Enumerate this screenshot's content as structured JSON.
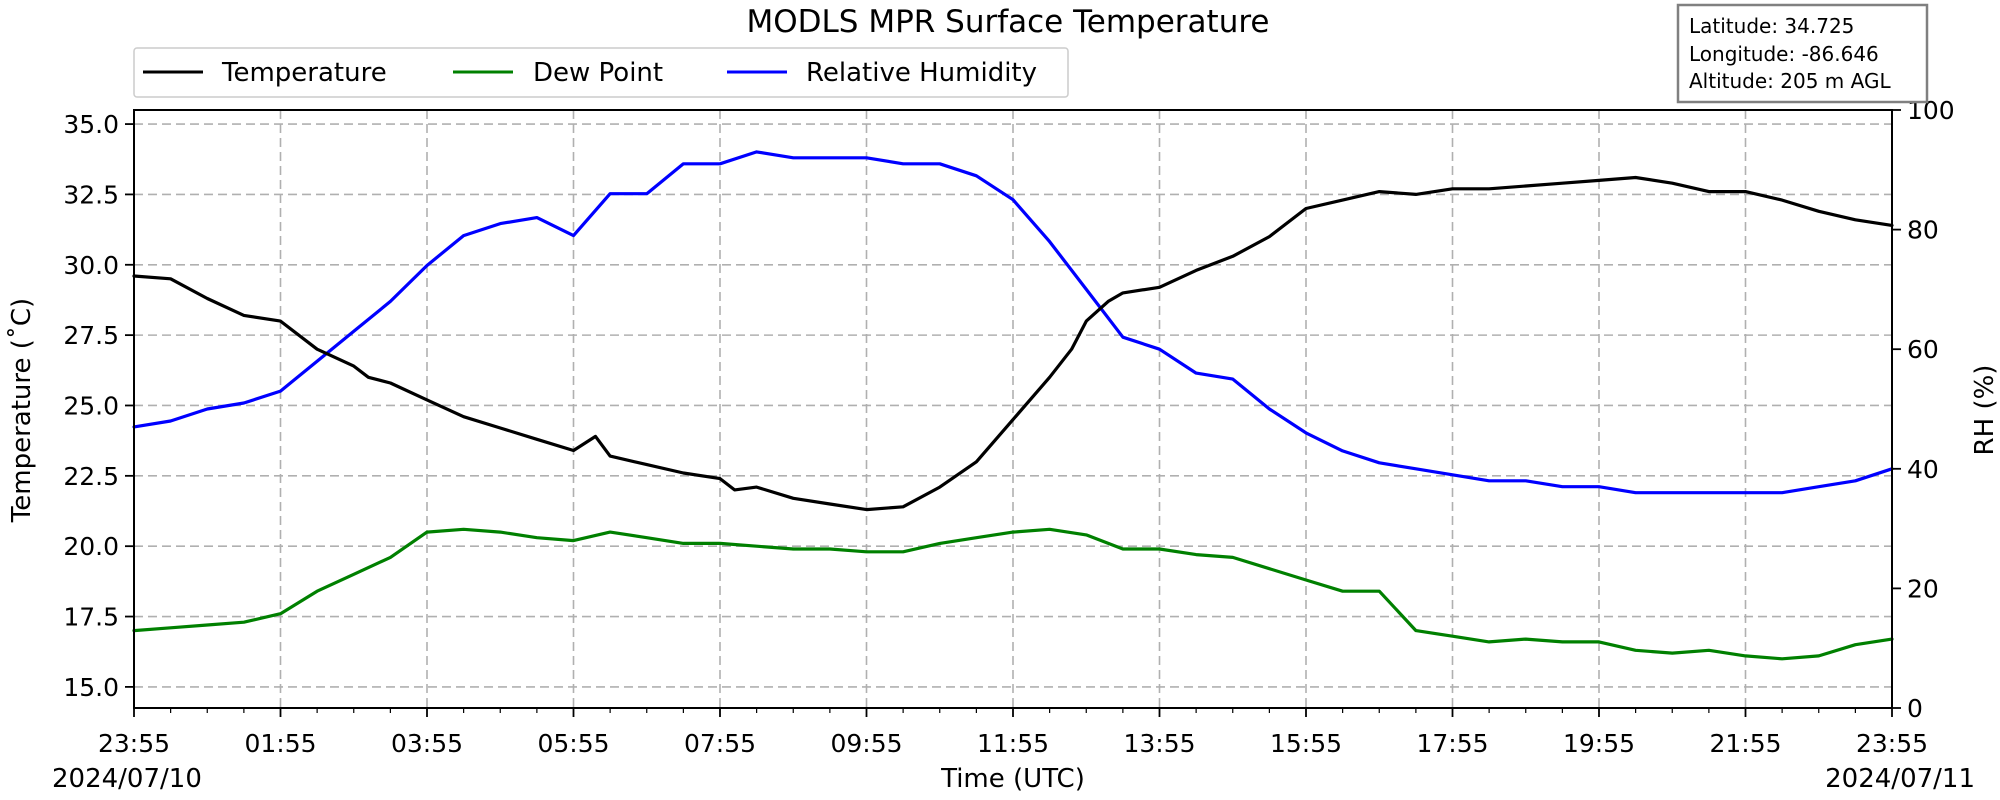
{
  "chart_data": {
    "type": "line",
    "title": "MODLS MPR Surface Temperature",
    "xlabel": "Time (UTC)",
    "ylabel_left": "Temperature ($^\\circ$C)",
    "ylabel_left_display": "Temperature (˚C)",
    "ylabel_right": "RH (%)",
    "date_start": "2024/07/10",
    "date_end": "2024/07/11",
    "x_ticks": [
      "23:55",
      "01:55",
      "03:55",
      "05:55",
      "07:55",
      "09:55",
      "11:55",
      "13:55",
      "15:55",
      "17:55",
      "19:55",
      "21:55",
      "23:55"
    ],
    "x_range_hours": [
      0,
      24
    ],
    "ylim_left": [
      14.25,
      35.5
    ],
    "yticks_left": [
      "15.0",
      "17.5",
      "20.0",
      "22.5",
      "25.0",
      "27.5",
      "30.0",
      "32.5",
      "35.0"
    ],
    "ylim_right": [
      0,
      100
    ],
    "yticks_right": [
      "0",
      "20",
      "40",
      "60",
      "80",
      "100"
    ],
    "grid": true,
    "legend": "top-left, outside above plot",
    "info_box": {
      "latitude": "Latitude: 34.725",
      "longitude": "Longitude: -86.646",
      "altitude": "Altitude: 205 m AGL"
    },
    "series": [
      {
        "name": "Temperature",
        "color": "#000000",
        "axis": "left",
        "x": [
          0,
          0.5,
          1,
          1.5,
          2,
          2.5,
          3,
          3.2,
          3.5,
          4,
          4.5,
          5,
          5.5,
          6,
          6.3,
          6.5,
          7,
          7.5,
          8,
          8.2,
          8.5,
          9,
          9.5,
          10,
          10.5,
          11,
          11.5,
          12,
          12.5,
          12.8,
          13,
          13.3,
          13.5,
          14,
          14.5,
          15,
          15.5,
          16,
          16.5,
          17,
          17.5,
          18,
          18.5,
          19,
          19.5,
          20,
          20.5,
          21,
          21.5,
          22,
          22.5,
          23,
          23.5,
          24
        ],
        "values": [
          29.6,
          29.5,
          28.8,
          28.2,
          28.0,
          27.0,
          26.4,
          26.0,
          25.8,
          25.2,
          24.6,
          24.2,
          23.8,
          23.4,
          23.9,
          23.2,
          22.9,
          22.6,
          22.4,
          22.0,
          22.1,
          21.7,
          21.5,
          21.3,
          21.4,
          22.1,
          23.0,
          24.5,
          26.0,
          27.0,
          28.0,
          28.7,
          29.0,
          29.2,
          29.8,
          30.3,
          31.0,
          32.0,
          32.3,
          32.6,
          32.5,
          32.7,
          32.7,
          32.8,
          32.9,
          33.0,
          33.1,
          32.9,
          32.6,
          32.6,
          32.3,
          31.9,
          31.6,
          31.4
        ]
      },
      {
        "name": "Dew Point",
        "color": "#008000",
        "axis": "left",
        "x": [
          0,
          0.5,
          1,
          1.5,
          2,
          2.5,
          3,
          3.5,
          4,
          4.5,
          5,
          5.5,
          6,
          6.5,
          7,
          7.5,
          8,
          8.5,
          9,
          9.5,
          10,
          10.5,
          11,
          11.5,
          12,
          12.5,
          13,
          13.5,
          14,
          14.5,
          15,
          15.5,
          16,
          16.5,
          17,
          17.5,
          18,
          18.5,
          19,
          19.5,
          20,
          20.5,
          21,
          21.5,
          22,
          22.5,
          23,
          23.5,
          24
        ],
        "values": [
          17.0,
          17.1,
          17.2,
          17.3,
          17.6,
          18.4,
          19.0,
          19.6,
          20.5,
          20.6,
          20.5,
          20.3,
          20.2,
          20.5,
          20.3,
          20.1,
          20.1,
          20.0,
          19.9,
          19.9,
          19.8,
          19.8,
          20.1,
          20.3,
          20.5,
          20.6,
          20.4,
          19.9,
          19.9,
          19.7,
          19.6,
          19.2,
          18.8,
          18.4,
          18.4,
          17.0,
          16.8,
          16.6,
          16.7,
          16.6,
          16.6,
          16.3,
          16.2,
          16.3,
          16.1,
          16.0,
          16.1,
          16.5,
          16.7
        ]
      },
      {
        "name": "Relative Humidity",
        "color": "#0000ff",
        "axis": "right",
        "x": [
          0,
          0.5,
          1,
          1.5,
          2,
          2.5,
          3,
          3.5,
          4,
          4.5,
          5,
          5.5,
          6,
          6.5,
          7,
          7.5,
          8,
          8.5,
          9,
          9.5,
          10,
          10.5,
          11,
          11.5,
          12,
          12.5,
          13,
          13.5,
          14,
          14.5,
          15,
          15.5,
          16,
          16.5,
          17,
          17.5,
          18,
          18.5,
          19,
          19.5,
          20,
          20.5,
          21,
          21.5,
          22,
          22.5,
          23,
          23.5,
          24
        ],
        "values": [
          47,
          48,
          50,
          51,
          53,
          58,
          63,
          68,
          74,
          79,
          81,
          82,
          79,
          86,
          86,
          91,
          91,
          93,
          92,
          92,
          92,
          91,
          91,
          89,
          85,
          78,
          70,
          62,
          60,
          56,
          55,
          50,
          46,
          43,
          41,
          40,
          39,
          38,
          38,
          37,
          37,
          36,
          36,
          36,
          36,
          36,
          37,
          38,
          40
        ]
      }
    ]
  }
}
